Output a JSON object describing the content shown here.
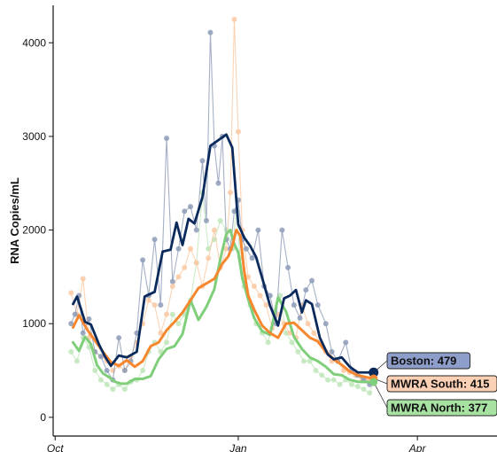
{
  "chart_data": {
    "type": "line",
    "ylabel": "RNA Copies/mL",
    "xlabel": "",
    "x_tick_labels": [
      "Oct",
      "Jan",
      "Apr"
    ],
    "x_tick_days": [
      0,
      92,
      182
    ],
    "y_ticks": [
      0,
      1000,
      2000,
      3000,
      4000
    ],
    "xlim_days": [
      -1,
      222
    ],
    "ylim": [
      -200,
      4400
    ],
    "grid": false,
    "legend": "end-labels",
    "colors": {
      "boston": "#0b2a5c",
      "boston_raw": "#8e9cb8",
      "south": "#f7872f",
      "south_raw": "#fbc9a3",
      "north": "#7fcf7a",
      "north_raw": "#bfe6bb",
      "boston_label_bg": "#8e9ecb",
      "south_label_bg": "#fcd0b4",
      "north_label_bg": "#a8e2a3"
    },
    "series": [
      {
        "key": "boston",
        "end_label": "Boston: 479",
        "end_value": 479,
        "smoothed": {
          "x": [
            9,
            11,
            15,
            18,
            22,
            25,
            28,
            32,
            36,
            41,
            45,
            50,
            54,
            58,
            61,
            64,
            67,
            70,
            74,
            78,
            82,
            86,
            89,
            92,
            95,
            98,
            101,
            104,
            108,
            112,
            115,
            118,
            121,
            124,
            126,
            129,
            133,
            137,
            140,
            144,
            148,
            152,
            156,
            160
          ],
          "y": [
            1210,
            1290,
            1020,
            990,
            780,
            650,
            550,
            660,
            640,
            700,
            1290,
            1340,
            1770,
            1790,
            2080,
            1840,
            2120,
            2070,
            2350,
            2900,
            2960,
            3020,
            2880,
            2060,
            1920,
            1830,
            1710,
            1490,
            1190,
            980,
            1270,
            1300,
            1360,
            1120,
            1250,
            1210,
            850,
            670,
            620,
            640,
            540,
            480,
            479,
            479
          ]
        },
        "raw": {
          "x": [
            8,
            10,
            12,
            14,
            17,
            20,
            23,
            26,
            29,
            32,
            35,
            38,
            41,
            44,
            47,
            50,
            53,
            56,
            59,
            62,
            65,
            68,
            71,
            74,
            76,
            78,
            80,
            82,
            84,
            86,
            88,
            90,
            92,
            94,
            96,
            99,
            102,
            105,
            108,
            111,
            114,
            117,
            120,
            123,
            126,
            129,
            132,
            136,
            139,
            142,
            146,
            149,
            152,
            155,
            158,
            160
          ],
          "y": [
            1000,
            1100,
            1300,
            900,
            1050,
            700,
            650,
            500,
            400,
            850,
            500,
            600,
            900,
            1680,
            1300,
            1900,
            1200,
            2980,
            1450,
            1800,
            2200,
            2250,
            2000,
            2740,
            2100,
            4110,
            2900,
            2500,
            3000,
            1900,
            1800,
            2200,
            2320,
            1900,
            1800,
            1700,
            2000,
            1400,
            1300,
            1000,
            2000,
            1600,
            1200,
            1060,
            1360,
            1460,
            1200,
            1000,
            700,
            600,
            800,
            500,
            450,
            400,
            350,
            479
          ]
        }
      },
      {
        "key": "south",
        "end_label": "MWRA South: 415",
        "end_value": 415,
        "smoothed": {
          "x": [
            9,
            12,
            16,
            20,
            24,
            28,
            32,
            36,
            40,
            44,
            48,
            52,
            56,
            60,
            64,
            68,
            72,
            76,
            80,
            84,
            87,
            89,
            91,
            93,
            95,
            97,
            100,
            104,
            108,
            112,
            116,
            120,
            124,
            128,
            132,
            136,
            140,
            144,
            148,
            152,
            156,
            160
          ],
          "y": [
            960,
            1090,
            940,
            820,
            700,
            590,
            550,
            610,
            540,
            600,
            760,
            800,
            930,
            1020,
            1120,
            1250,
            1380,
            1430,
            1480,
            1640,
            1720,
            1830,
            2000,
            1940,
            1560,
            1300,
            1150,
            980,
            900,
            850,
            1000,
            1010,
            930,
            850,
            810,
            700,
            620,
            560,
            490,
            450,
            430,
            415
          ]
        },
        "raw": {
          "x": [
            8,
            11,
            14,
            17,
            20,
            23,
            26,
            29,
            32,
            35,
            38,
            41,
            44,
            47,
            50,
            53,
            56,
            59,
            62,
            65,
            68,
            71,
            74,
            77,
            80,
            83,
            86,
            88,
            90,
            92,
            94,
            97,
            100,
            103,
            106,
            109,
            112,
            115,
            118,
            121,
            124,
            127,
            130,
            133,
            136,
            139,
            142,
            145,
            148,
            151,
            154,
            157,
            160
          ],
          "y": [
            1330,
            1100,
            1480,
            850,
            700,
            650,
            600,
            500,
            550,
            500,
            650,
            800,
            1000,
            1250,
            1200,
            900,
            1100,
            1400,
            1500,
            1600,
            1800,
            1650,
            1400,
            1700,
            2000,
            1600,
            1800,
            2400,
            4250,
            3050,
            2000,
            1500,
            1400,
            1300,
            1200,
            950,
            1100,
            1000,
            900,
            850,
            1200,
            1000,
            900,
            800,
            700,
            600,
            600,
            500,
            480,
            450,
            420,
            400,
            415
          ]
        }
      },
      {
        "key": "north",
        "end_label": "MWRA North: 377",
        "end_value": 377,
        "smoothed": {
          "x": [
            9,
            12,
            15,
            18,
            21,
            24,
            27,
            30,
            33,
            36,
            40,
            44,
            48,
            52,
            56,
            60,
            64,
            68,
            72,
            76,
            80,
            83,
            86,
            88,
            90,
            92,
            94,
            97,
            100,
            104,
            108,
            112,
            116,
            120,
            124,
            128,
            132,
            136,
            140,
            144,
            148,
            152,
            156,
            160
          ],
          "y": [
            800,
            710,
            860,
            780,
            560,
            470,
            430,
            380,
            360,
            360,
            410,
            410,
            440,
            620,
            730,
            760,
            890,
            1250,
            1040,
            1180,
            1370,
            1690,
            1960,
            2000,
            1850,
            1760,
            1490,
            1260,
            1060,
            920,
            880,
            1280,
            1130,
            860,
            730,
            640,
            600,
            540,
            460,
            450,
            400,
            380,
            377,
            377
          ]
        },
        "raw": {
          "x": [
            8,
            11,
            14,
            17,
            20,
            23,
            26,
            29,
            32,
            35,
            38,
            41,
            44,
            47,
            50,
            53,
            56,
            59,
            62,
            65,
            68,
            71,
            74,
            77,
            80,
            83,
            86,
            89,
            91,
            93,
            95,
            98,
            101,
            104,
            107,
            110,
            113,
            116,
            119,
            122,
            125,
            128,
            131,
            134,
            137,
            140,
            143,
            146,
            149,
            152,
            155,
            158,
            160
          ],
          "y": [
            700,
            600,
            850,
            750,
            500,
            400,
            350,
            300,
            350,
            300,
            380,
            400,
            500,
            700,
            800,
            700,
            800,
            1100,
            1000,
            1100,
            1250,
            1650,
            2400,
            1800,
            1900,
            2100,
            2000,
            1800,
            2200,
            1700,
            1400,
            1200,
            1000,
            900,
            800,
            1100,
            1300,
            900,
            800,
            700,
            600,
            600,
            500,
            450,
            400,
            400,
            350,
            400,
            350,
            330,
            300,
            260,
            377
          ]
        }
      }
    ]
  }
}
